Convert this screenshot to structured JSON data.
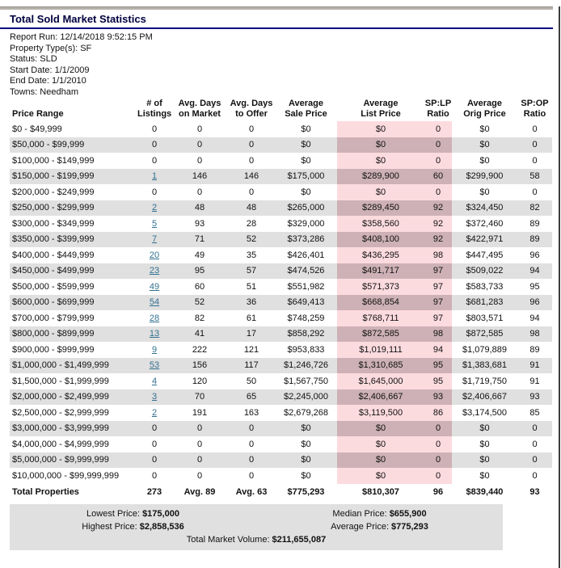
{
  "title": "Total Sold Market Statistics",
  "meta_lines": [
    "Report Run: 12/14/2018 9:52:15 PM",
    "Property Type(s): SF",
    "Status: SLD",
    "Start Date: 1/1/2009",
    "End Date: 1/1/2010",
    "Towns: Needham"
  ],
  "colors": {
    "navy": "#000080",
    "title": "#000040",
    "stripe": "#e0e0e0",
    "pink": "#fcdbdf",
    "pinkdark": "#cdb1b6",
    "link": "#31708f"
  },
  "table": {
    "column_keys": [
      "price-range",
      "listings",
      "days-on-market",
      "days-to-offer",
      "avg-sale-price",
      "avg-list-price",
      "splp-ratio",
      "avg-orig-price",
      "spop-ratio"
    ],
    "columns": [
      {
        "line1": "",
        "line2": "Price Range"
      },
      {
        "line1": "# of",
        "line2": "Listings"
      },
      {
        "line1": "Avg. Days",
        "line2": "on Market"
      },
      {
        "line1": "Avg. Days",
        "line2": "to Offer"
      },
      {
        "line1": "Average",
        "line2": "Sale Price"
      },
      {
        "line1": "Average",
        "line2": "List Price"
      },
      {
        "line1": "SP:LP",
        "line2": "Ratio"
      },
      {
        "line1": "Average",
        "line2": "Orig Price"
      },
      {
        "line1": "SP:OP",
        "line2": "Ratio"
      }
    ],
    "rows": [
      {
        "link": false,
        "cells": [
          "$0 - $49,999",
          "0",
          "0",
          "0",
          "$0",
          "$0",
          "0",
          "$0",
          "0"
        ]
      },
      {
        "link": false,
        "cells": [
          "$50,000 - $99,999",
          "0",
          "0",
          "0",
          "$0",
          "$0",
          "0",
          "$0",
          "0"
        ]
      },
      {
        "link": false,
        "cells": [
          "$100,000 - $149,999",
          "0",
          "0",
          "0",
          "$0",
          "$0",
          "0",
          "$0",
          "0"
        ]
      },
      {
        "link": true,
        "cells": [
          "$150,000 - $199,999",
          "1",
          "146",
          "146",
          "$175,000",
          "$289,900",
          "60",
          "$299,900",
          "58"
        ]
      },
      {
        "link": false,
        "cells": [
          "$200,000 - $249,999",
          "0",
          "0",
          "0",
          "$0",
          "$0",
          "0",
          "$0",
          "0"
        ]
      },
      {
        "link": true,
        "cells": [
          "$250,000 - $299,999",
          "2",
          "48",
          "48",
          "$265,000",
          "$289,450",
          "92",
          "$324,450",
          "82"
        ]
      },
      {
        "link": true,
        "cells": [
          "$300,000 - $349,999",
          "5",
          "93",
          "28",
          "$329,000",
          "$358,560",
          "92",
          "$372,460",
          "89"
        ]
      },
      {
        "link": true,
        "cells": [
          "$350,000 - $399,999",
          "7",
          "71",
          "52",
          "$373,286",
          "$408,100",
          "92",
          "$422,971",
          "89"
        ]
      },
      {
        "link": true,
        "cells": [
          "$400,000 - $449,999",
          "20",
          "49",
          "35",
          "$426,401",
          "$436,295",
          "98",
          "$447,495",
          "96"
        ]
      },
      {
        "link": true,
        "cells": [
          "$450,000 - $499,999",
          "23",
          "95",
          "57",
          "$474,526",
          "$491,717",
          "97",
          "$509,022",
          "94"
        ]
      },
      {
        "link": true,
        "cells": [
          "$500,000 - $599,999",
          "49",
          "60",
          "51",
          "$551,982",
          "$571,373",
          "97",
          "$583,733",
          "95"
        ]
      },
      {
        "link": true,
        "cells": [
          "$600,000 - $699,999",
          "54",
          "52",
          "36",
          "$649,413",
          "$668,854",
          "97",
          "$681,283",
          "96"
        ]
      },
      {
        "link": true,
        "cells": [
          "$700,000 - $799,999",
          "28",
          "82",
          "61",
          "$748,259",
          "$768,711",
          "97",
          "$803,571",
          "94"
        ]
      },
      {
        "link": true,
        "cells": [
          "$800,000 - $899,999",
          "13",
          "41",
          "17",
          "$858,292",
          "$872,585",
          "98",
          "$872,585",
          "98"
        ]
      },
      {
        "link": true,
        "cells": [
          "$900,000 - $999,999",
          "9",
          "222",
          "121",
          "$953,833",
          "$1,019,111",
          "94",
          "$1,079,889",
          "89"
        ]
      },
      {
        "link": true,
        "cells": [
          "$1,000,000 - $1,499,999",
          "53",
          "156",
          "117",
          "$1,246,726",
          "$1,310,685",
          "95",
          "$1,383,681",
          "91"
        ]
      },
      {
        "link": true,
        "cells": [
          "$1,500,000 - $1,999,999",
          "4",
          "120",
          "50",
          "$1,567,750",
          "$1,645,000",
          "95",
          "$1,719,750",
          "91"
        ]
      },
      {
        "link": true,
        "cells": [
          "$2,000,000 - $2,499,999",
          "3",
          "70",
          "65",
          "$2,245,000",
          "$2,406,667",
          "93",
          "$2,406,667",
          "93"
        ]
      },
      {
        "link": true,
        "cells": [
          "$2,500,000 - $2,999,999",
          "2",
          "191",
          "163",
          "$2,679,268",
          "$3,119,500",
          "86",
          "$3,174,500",
          "85"
        ]
      },
      {
        "link": false,
        "cells": [
          "$3,000,000 - $3,999,999",
          "0",
          "0",
          "0",
          "$0",
          "$0",
          "0",
          "$0",
          "0"
        ]
      },
      {
        "link": false,
        "cells": [
          "$4,000,000 - $4,999,999",
          "0",
          "0",
          "0",
          "$0",
          "$0",
          "0",
          "$0",
          "0"
        ]
      },
      {
        "link": false,
        "cells": [
          "$5,000,000 - $9,999,999",
          "0",
          "0",
          "0",
          "$0",
          "$0",
          "0",
          "$0",
          "0"
        ]
      },
      {
        "link": false,
        "cells": [
          "$10,000,000 - $99,999,999",
          "0",
          "0",
          "0",
          "$0",
          "$0",
          "0",
          "$0",
          "0"
        ]
      }
    ],
    "totals": {
      "cells": [
        "Total Properties",
        "273",
        "Avg. 89",
        "Avg. 63",
        "$775,293",
        "$810,307",
        "96",
        "$839,440",
        "93"
      ]
    }
  },
  "summary": {
    "lowest_label": "Lowest Price:",
    "lowest_value": "$175,000",
    "median_label": "Median Price:",
    "median_value": "$655,900",
    "highest_label": "Highest Price:",
    "highest_value": "$2,858,536",
    "average_label": "Average Price:",
    "average_value": "$775,293",
    "volume_label": "Total Market Volume:",
    "volume_value": "$211,655,087"
  }
}
